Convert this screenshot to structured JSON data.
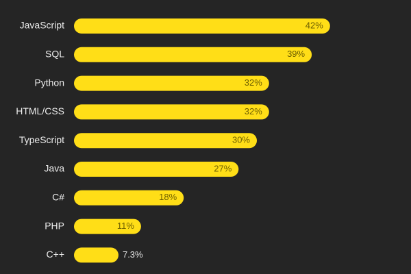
{
  "chart_data": {
    "type": "bar",
    "orientation": "horizontal",
    "title": "",
    "xlabel": "",
    "ylabel": "",
    "grid": false,
    "legend": "none",
    "xlim": [
      0,
      50
    ],
    "categories": [
      "JavaScript",
      "SQL",
      "Python",
      "HTML/CSS",
      "TypeScript",
      "Java",
      "C#",
      "PHP",
      "C++"
    ],
    "values": [
      42,
      39,
      32,
      32,
      30,
      27,
      18,
      11,
      7.3
    ],
    "value_labels": [
      "42%",
      "39%",
      "32%",
      "32%",
      "30%",
      "27%",
      "18%",
      "11%",
      "7.3%"
    ],
    "bar_color": "#FFDE17",
    "background_color": "#252525"
  }
}
